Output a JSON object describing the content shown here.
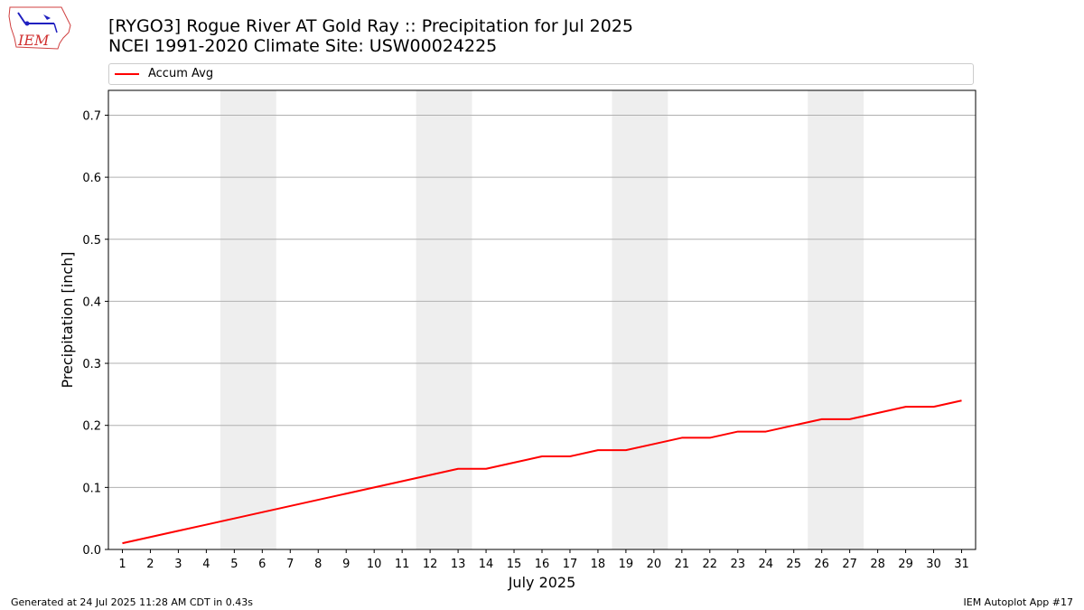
{
  "header": {
    "title_line1": "[RYGO3] Rogue River  AT Gold Ray :: Precipitation for Jul 2025",
    "title_line2": "NCEI 1991-2020 Climate Site: USW00024225"
  },
  "logo": {
    "text": "IEM"
  },
  "footer": {
    "left": "Generated at 24 Jul 2025 11:28 AM CDT in 0.43s",
    "right": "IEM Autoplot App #17"
  },
  "colors": {
    "line": "#ff0000",
    "weekend_band": "#eeeeee",
    "grid": "#b0b0b0"
  },
  "chart_data": {
    "type": "line",
    "title": "[RYGO3] Rogue River  AT Gold Ray :: Precipitation for Jul 2025",
    "subtitle": "NCEI 1991-2020 Climate Site: USW00024225",
    "xlabel": "July 2025",
    "ylabel": "Precipitation [inch]",
    "xlim": [
      0.5,
      31.5
    ],
    "ylim": [
      0,
      0.74
    ],
    "x_ticks": [
      1,
      2,
      3,
      4,
      5,
      6,
      7,
      8,
      9,
      10,
      11,
      12,
      13,
      14,
      15,
      16,
      17,
      18,
      19,
      20,
      21,
      22,
      23,
      24,
      25,
      26,
      27,
      28,
      29,
      30,
      31
    ],
    "y_ticks": [
      0.0,
      0.1,
      0.2,
      0.3,
      0.4,
      0.5,
      0.6,
      0.7
    ],
    "y_tick_labels": [
      "0.0",
      "0.1",
      "0.2",
      "0.3",
      "0.4",
      "0.5",
      "0.6",
      "0.7"
    ],
    "grid": "y",
    "legend_position": "top",
    "weekend_bands": [
      [
        4.5,
        6.5
      ],
      [
        11.5,
        13.5
      ],
      [
        18.5,
        20.5
      ],
      [
        25.5,
        27.5
      ]
    ],
    "series": [
      {
        "name": "Accum Avg",
        "color": "#ff0000",
        "x": [
          1,
          2,
          3,
          4,
          5,
          6,
          7,
          8,
          9,
          10,
          11,
          12,
          13,
          14,
          15,
          16,
          17,
          18,
          19,
          20,
          21,
          22,
          23,
          24,
          25,
          26,
          27,
          28,
          29,
          30,
          31
        ],
        "values": [
          0.01,
          0.02,
          0.03,
          0.04,
          0.05,
          0.06,
          0.07,
          0.08,
          0.09,
          0.1,
          0.11,
          0.12,
          0.13,
          0.13,
          0.14,
          0.15,
          0.15,
          0.16,
          0.16,
          0.17,
          0.18,
          0.18,
          0.19,
          0.19,
          0.2,
          0.21,
          0.21,
          0.22,
          0.23,
          0.23,
          0.24
        ]
      }
    ]
  }
}
